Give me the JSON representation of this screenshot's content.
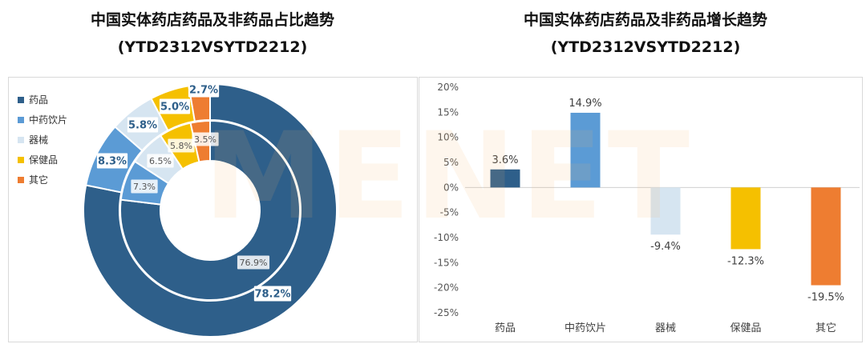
{
  "titles": {
    "left": {
      "line1": "中国实体药店药品及非药品占比趋势",
      "line2": "(YTD2312VSYTD2212)"
    },
    "right": {
      "line1": "中国实体药店药品及非药品增长趋势",
      "line2": "(YTD2312VSYTD2212)"
    }
  },
  "watermark": "MENET",
  "chart_data": [
    {
      "type": "pie",
      "subtype": "double-donut",
      "categories": [
        "药品",
        "中药饮片",
        "器械",
        "保健品",
        "其它"
      ],
      "colors": [
        "#2e5f8a",
        "#5b9bd5",
        "#d6e5f1",
        "#f5c000",
        "#ee7d31"
      ],
      "series": [
        {
          "ring": "outer",
          "values": [
            78.2,
            8.3,
            5.8,
            5.0,
            2.7
          ],
          "labels": [
            "78.2%",
            "8.3%",
            "5.8%",
            "5.0%",
            "2.7%"
          ]
        },
        {
          "ring": "inner",
          "values": [
            76.9,
            7.3,
            6.5,
            5.8,
            3.5
          ],
          "labels": [
            "76.9%",
            "7.3%",
            "6.5%",
            "5.8%",
            "3.5%"
          ]
        }
      ],
      "legend": "top-left"
    },
    {
      "type": "bar",
      "categories": [
        "药品",
        "中药饮片",
        "器械",
        "保健品",
        "其它"
      ],
      "values": [
        3.6,
        14.9,
        -9.4,
        -12.3,
        -19.5
      ],
      "data_labels": [
        "3.6%",
        "14.9%",
        "-9.4%",
        "-12.3%",
        "-19.5%"
      ],
      "colors": [
        "#2e5f8a",
        "#5b9bd5",
        "#d6e5f1",
        "#f5c000",
        "#ee7d31"
      ],
      "ylim": [
        -25,
        20
      ],
      "yticks": [
        "20%",
        "15%",
        "10%",
        "5%",
        "0%",
        "-5%",
        "-10%",
        "-15%",
        "-20%",
        "-25%"
      ],
      "ytick_values": [
        20,
        15,
        10,
        5,
        0,
        -5,
        -10,
        -15,
        -20,
        -25
      ],
      "grid": false
    }
  ]
}
